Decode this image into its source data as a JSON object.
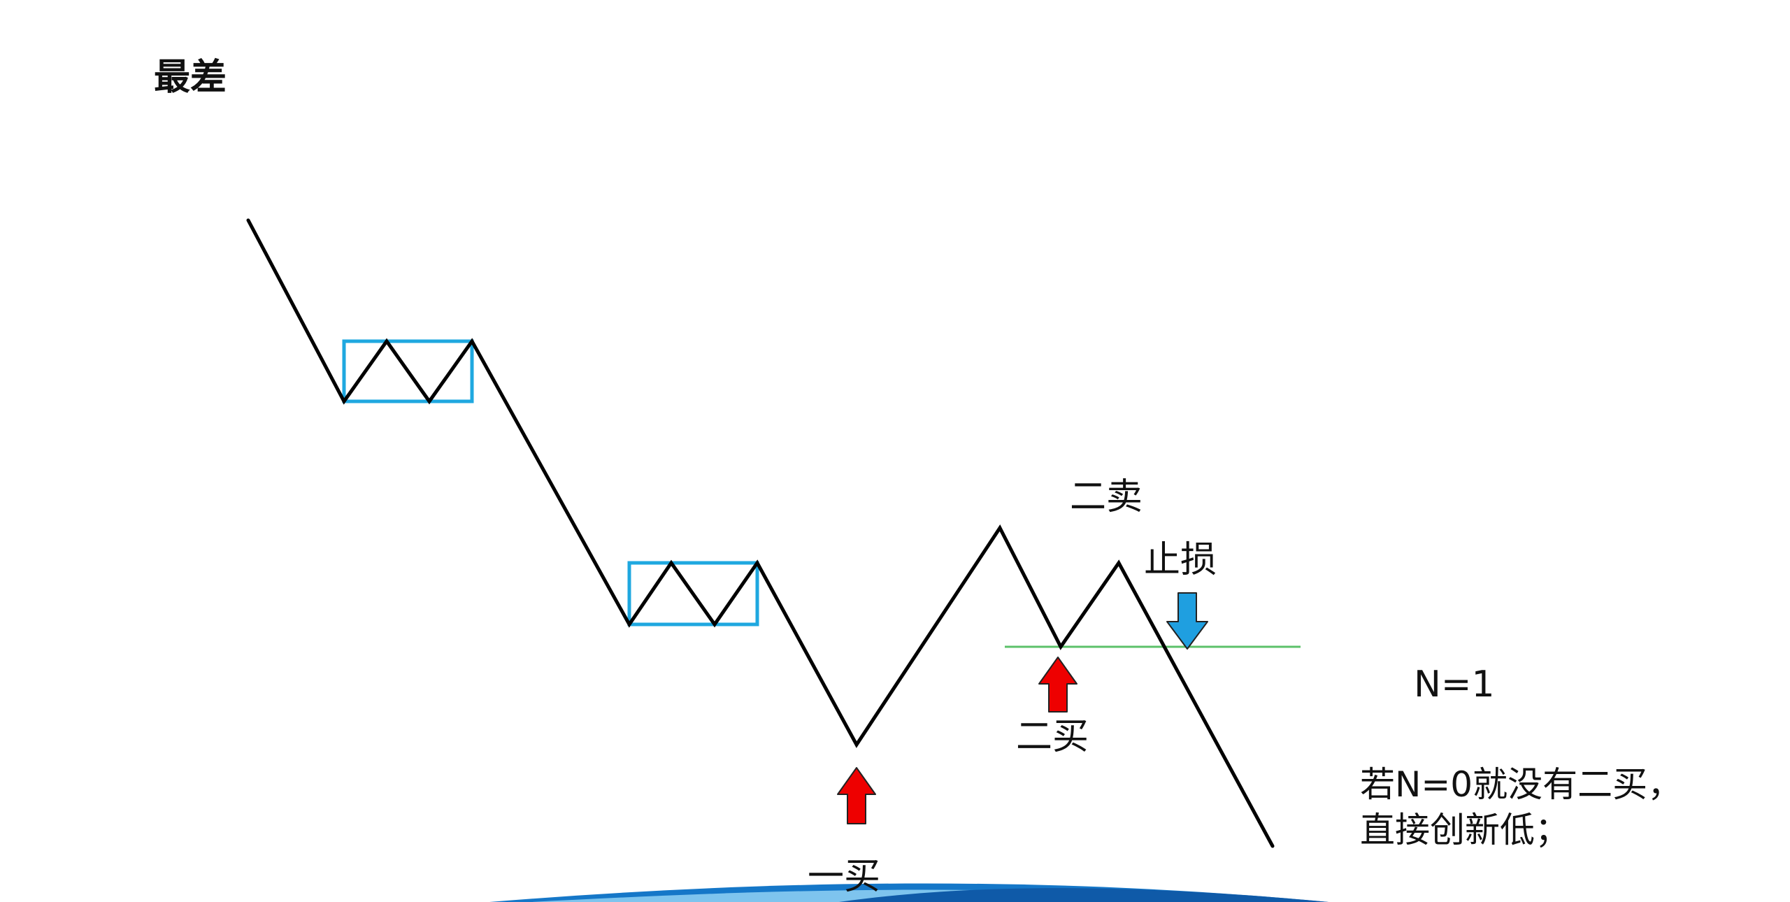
{
  "title": "最差",
  "labels": {
    "first_buy": "一买",
    "second_buy": "二买",
    "second_sell": "二卖",
    "stop_loss": "止损",
    "n_value": "N=1"
  },
  "note": {
    "line1": "若N=0就没有二买，",
    "line2": "直接创新低；"
  },
  "colors": {
    "price_line": "#000000",
    "pivot_box": "#1fa8e0",
    "support_line": "#5cc16a",
    "buy_arrow": "#ee0000",
    "stop_arrow": "#1f9fe0"
  },
  "icons": {
    "buy_arrow": "arrow-up-icon",
    "stop_arrow": "arrow-down-icon"
  }
}
